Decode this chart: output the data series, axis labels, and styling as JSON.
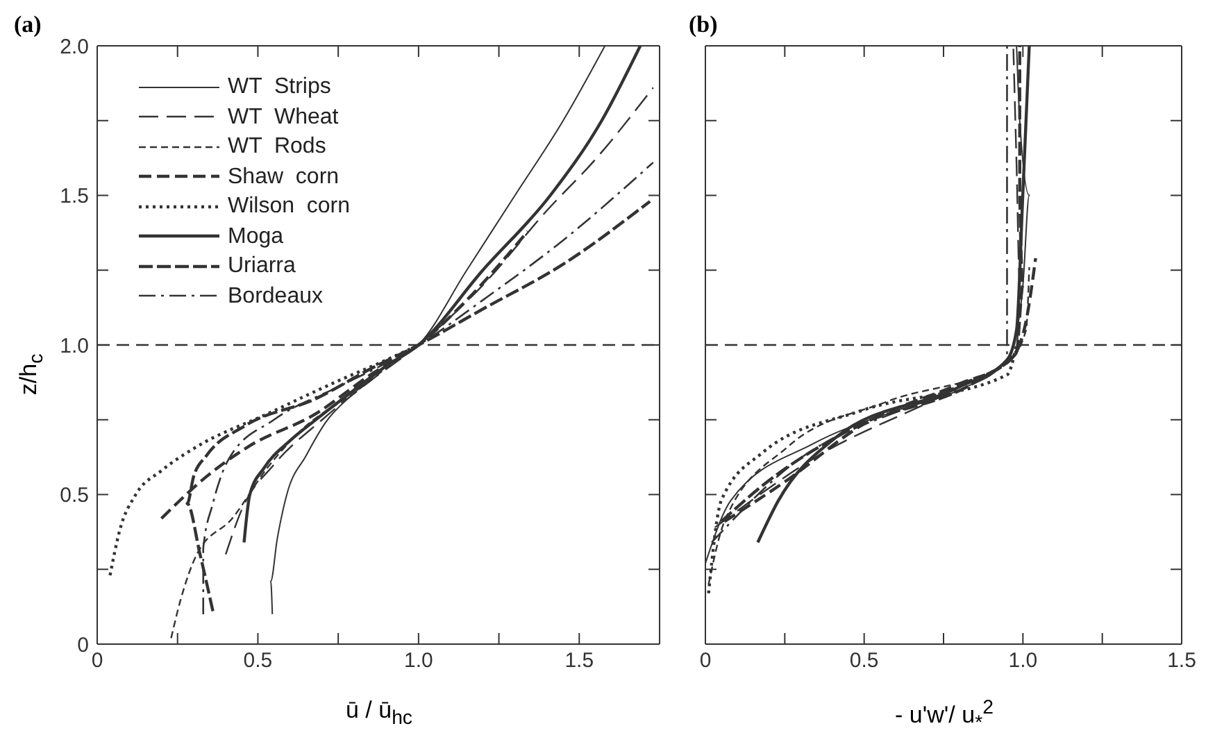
{
  "chart_data": [
    {
      "type": "line",
      "title": "(a)",
      "xlabel": "ū / ū$_{hc}$",
      "ylabel": "z/h$_{c}$",
      "xlim": [
        0,
        1.75
      ],
      "ylim": [
        0,
        2
      ],
      "xticks": [
        0,
        {
          "value": 0.25,
          "label": null
        },
        0.5,
        {
          "value": 0.75,
          "label": null
        },
        {
          "value": 1,
          "label": "1.0"
        },
        {
          "value": 1.25,
          "label": null
        },
        1.5
      ],
      "yticks": [
        0,
        {
          "value": 0.25,
          "label": null
        },
        0.5,
        {
          "value": 0.75,
          "label": null
        },
        {
          "value": 1,
          "label": "1.0"
        },
        {
          "value": 1.25,
          "label": null
        },
        1.5,
        {
          "value": 1.75,
          "label": null
        },
        {
          "value": 2,
          "label": "2.0"
        }
      ],
      "legend": "top left",
      "ref_lines": [
        {
          "axis": "y",
          "value": 1,
          "line_style": "dashed",
          "color": "#333333"
        }
      ],
      "series": [
        {
          "name": "WT  Strips",
          "color": "#333333",
          "line_style": "solid",
          "x": [
            0.545,
            0.54,
            0.56,
            0.59,
            0.65,
            0.71,
            0.8,
            0.9,
            1.0,
            1.15,
            1.3,
            1.45,
            1.58
          ],
          "values": [
            0.1,
            0.21,
            0.35,
            0.5,
            0.63,
            0.74,
            0.84,
            0.93,
            1.0,
            1.25,
            1.5,
            1.75,
            2.0
          ]
        },
        {
          "name": "WT  Wheat",
          "color": "#333333",
          "line_style": "dashed",
          "x": [
            0.4,
            0.45,
            0.55,
            0.7,
            0.85,
            1.0,
            1.2,
            1.4,
            1.55,
            1.73
          ],
          "values": [
            0.3,
            0.45,
            0.6,
            0.75,
            0.88,
            1.0,
            1.2,
            1.45,
            1.62,
            1.86
          ]
        },
        {
          "name": "WT  Rods",
          "color": "#333333",
          "line_style": "dashed",
          "x": [
            0.23,
            0.26,
            0.31,
            0.42,
            0.53,
            0.64,
            0.8,
            0.92,
            1.0,
            1.05
          ],
          "values": [
            0.02,
            0.15,
            0.3,
            0.42,
            0.59,
            0.72,
            0.84,
            0.94,
            1.0,
            1.05
          ]
        },
        {
          "name": "Shaw  corn",
          "color": "#333333",
          "line_style": "dashed",
          "x": [
            0.2,
            0.34,
            0.47,
            0.68,
            0.85,
            1.0,
            1.15,
            1.34
          ],
          "values": [
            0.42,
            0.56,
            0.66,
            0.77,
            0.9,
            1.0,
            1.15,
            1.38
          ]
        },
        {
          "name": "Wilson  corn",
          "color": "#333333",
          "line_style": "dotted",
          "x": [
            0.04,
            0.07,
            0.12,
            0.2,
            0.31,
            0.53,
            0.75,
            0.9,
            1.0
          ],
          "values": [
            0.23,
            0.38,
            0.5,
            0.58,
            0.66,
            0.77,
            0.88,
            0.95,
            1.0
          ]
        },
        {
          "name": "Moga",
          "color": "#333333",
          "line_style": "solid",
          "x": [
            0.457,
            0.475,
            0.52,
            0.6,
            0.68,
            0.8,
            0.9,
            1.0,
            1.2,
            1.41,
            1.57,
            1.69
          ],
          "values": [
            0.34,
            0.5,
            0.59,
            0.68,
            0.75,
            0.85,
            0.93,
            1.0,
            1.25,
            1.5,
            1.75,
            2.0
          ]
        },
        {
          "name": "Uriarra",
          "color": "#333333",
          "line_style": "dashed",
          "x": [
            0.36,
            0.32,
            0.28,
            0.3,
            0.34,
            0.46,
            0.68,
            0.85,
            1.0,
            1.2,
            1.45,
            1.72
          ],
          "values": [
            0.11,
            0.3,
            0.47,
            0.56,
            0.63,
            0.73,
            0.82,
            0.92,
            1.0,
            1.12,
            1.27,
            1.48
          ]
        },
        {
          "name": "Bordeaux",
          "color": "#333333",
          "line_style": "dashed",
          "x": [
            0.33,
            0.33,
            0.36,
            0.41,
            0.55,
            0.75,
            0.9,
            1.0,
            1.2,
            1.45,
            1.73
          ],
          "values": [
            0.1,
            0.32,
            0.47,
            0.62,
            0.75,
            0.86,
            0.94,
            1.0,
            1.15,
            1.35,
            1.61
          ]
        }
      ]
    },
    {
      "type": "line",
      "title": "(b)",
      "xlabel": "- u'w'/ u$_{*}$$^{2}$",
      "xlim": [
        0,
        1.5
      ],
      "ylim": [
        0,
        2
      ],
      "tick_labels": "x",
      "xticks": [
        0,
        {
          "value": 0.25,
          "label": null
        },
        0.5,
        {
          "value": 0.75,
          "label": null
        },
        {
          "value": 1,
          "label": "1.0"
        },
        {
          "value": 1.25,
          "label": null
        },
        1.5
      ],
      "yticks": [
        {
          "value": 0,
          "label": null
        },
        {
          "value": 0.25,
          "label": null
        },
        {
          "value": 0.5,
          "label": null
        },
        {
          "value": 0.75,
          "label": null
        },
        {
          "value": 1,
          "label": null
        },
        {
          "value": 1.25,
          "label": null
        },
        {
          "value": 1.5,
          "label": null
        },
        {
          "value": 1.75,
          "label": null
        },
        {
          "value": 2,
          "label": null
        }
      ],
      "ref_lines": [
        {
          "axis": "y",
          "value": 1,
          "line_style": "dashed",
          "color": "#333333"
        }
      ],
      "series": [
        {
          "color": "#333333",
          "line_style": "solid",
          "x": [
            0,
            0.08,
            0.34,
            0.6,
            0.8,
            0.95,
            0.97,
            1.0,
            1.02,
            0.99,
            0.98
          ],
          "values": [
            0.27,
            0.48,
            0.67,
            0.78,
            0.85,
            0.95,
            1.0,
            1.2,
            1.5,
            1.75,
            2.0
          ]
        },
        {
          "color": "#333333",
          "line_style": "dashed",
          "x": [
            0.03,
            0.34,
            0.8,
            0.98,
            0.99,
            0.98,
            0.97
          ],
          "values": [
            0.39,
            0.62,
            0.86,
            0.97,
            1.2,
            1.6,
            1.99
          ]
        },
        {
          "color": "#333333",
          "line_style": "dashed",
          "x": [
            0.01,
            0.06,
            0.26,
            0.57,
            0.95,
            1.01,
            1.02
          ],
          "values": [
            0.2,
            0.41,
            0.66,
            0.81,
            0.94,
            1.05,
            1.26
          ]
        },
        {
          "color": "#333333",
          "line_style": "dashed",
          "x": [
            0.06,
            0.26,
            0.49,
            0.8,
            0.96,
            1.01,
            1.04
          ],
          "values": [
            0.41,
            0.55,
            0.73,
            0.87,
            0.95,
            1.08,
            1.29
          ]
        },
        {
          "color": "#333333",
          "line_style": "dotted",
          "x": [
            0.01,
            0.05,
            0.18,
            0.49,
            0.95,
            0.98
          ],
          "values": [
            0.17,
            0.48,
            0.64,
            0.78,
            0.9,
            1.0
          ]
        },
        {
          "color": "#333333",
          "line_style": "solid",
          "x": [
            0.165,
            0.23,
            0.41,
            0.8,
            0.95,
            0.98,
            1.0,
            1.02
          ],
          "values": [
            0.34,
            0.48,
            0.69,
            0.86,
            0.95,
            1.05,
            1.51,
            2.0
          ]
        },
        {
          "color": "#333333",
          "line_style": "dashed",
          "x": [
            0.05,
            0.18,
            0.46,
            0.87,
            0.98,
            1.0,
            0.99,
            0.99
          ],
          "values": [
            0.41,
            0.53,
            0.72,
            0.89,
            0.98,
            1.2,
            1.51,
            2.0
          ]
        },
        {
          "color": "#333333",
          "line_style": "dashed",
          "x": [
            0.02,
            0.26,
            0.72,
            0.95,
            0.95,
            0.95
          ],
          "values": [
            0.34,
            0.59,
            0.83,
            0.95,
            1.51,
            2.0
          ]
        }
      ]
    }
  ]
}
